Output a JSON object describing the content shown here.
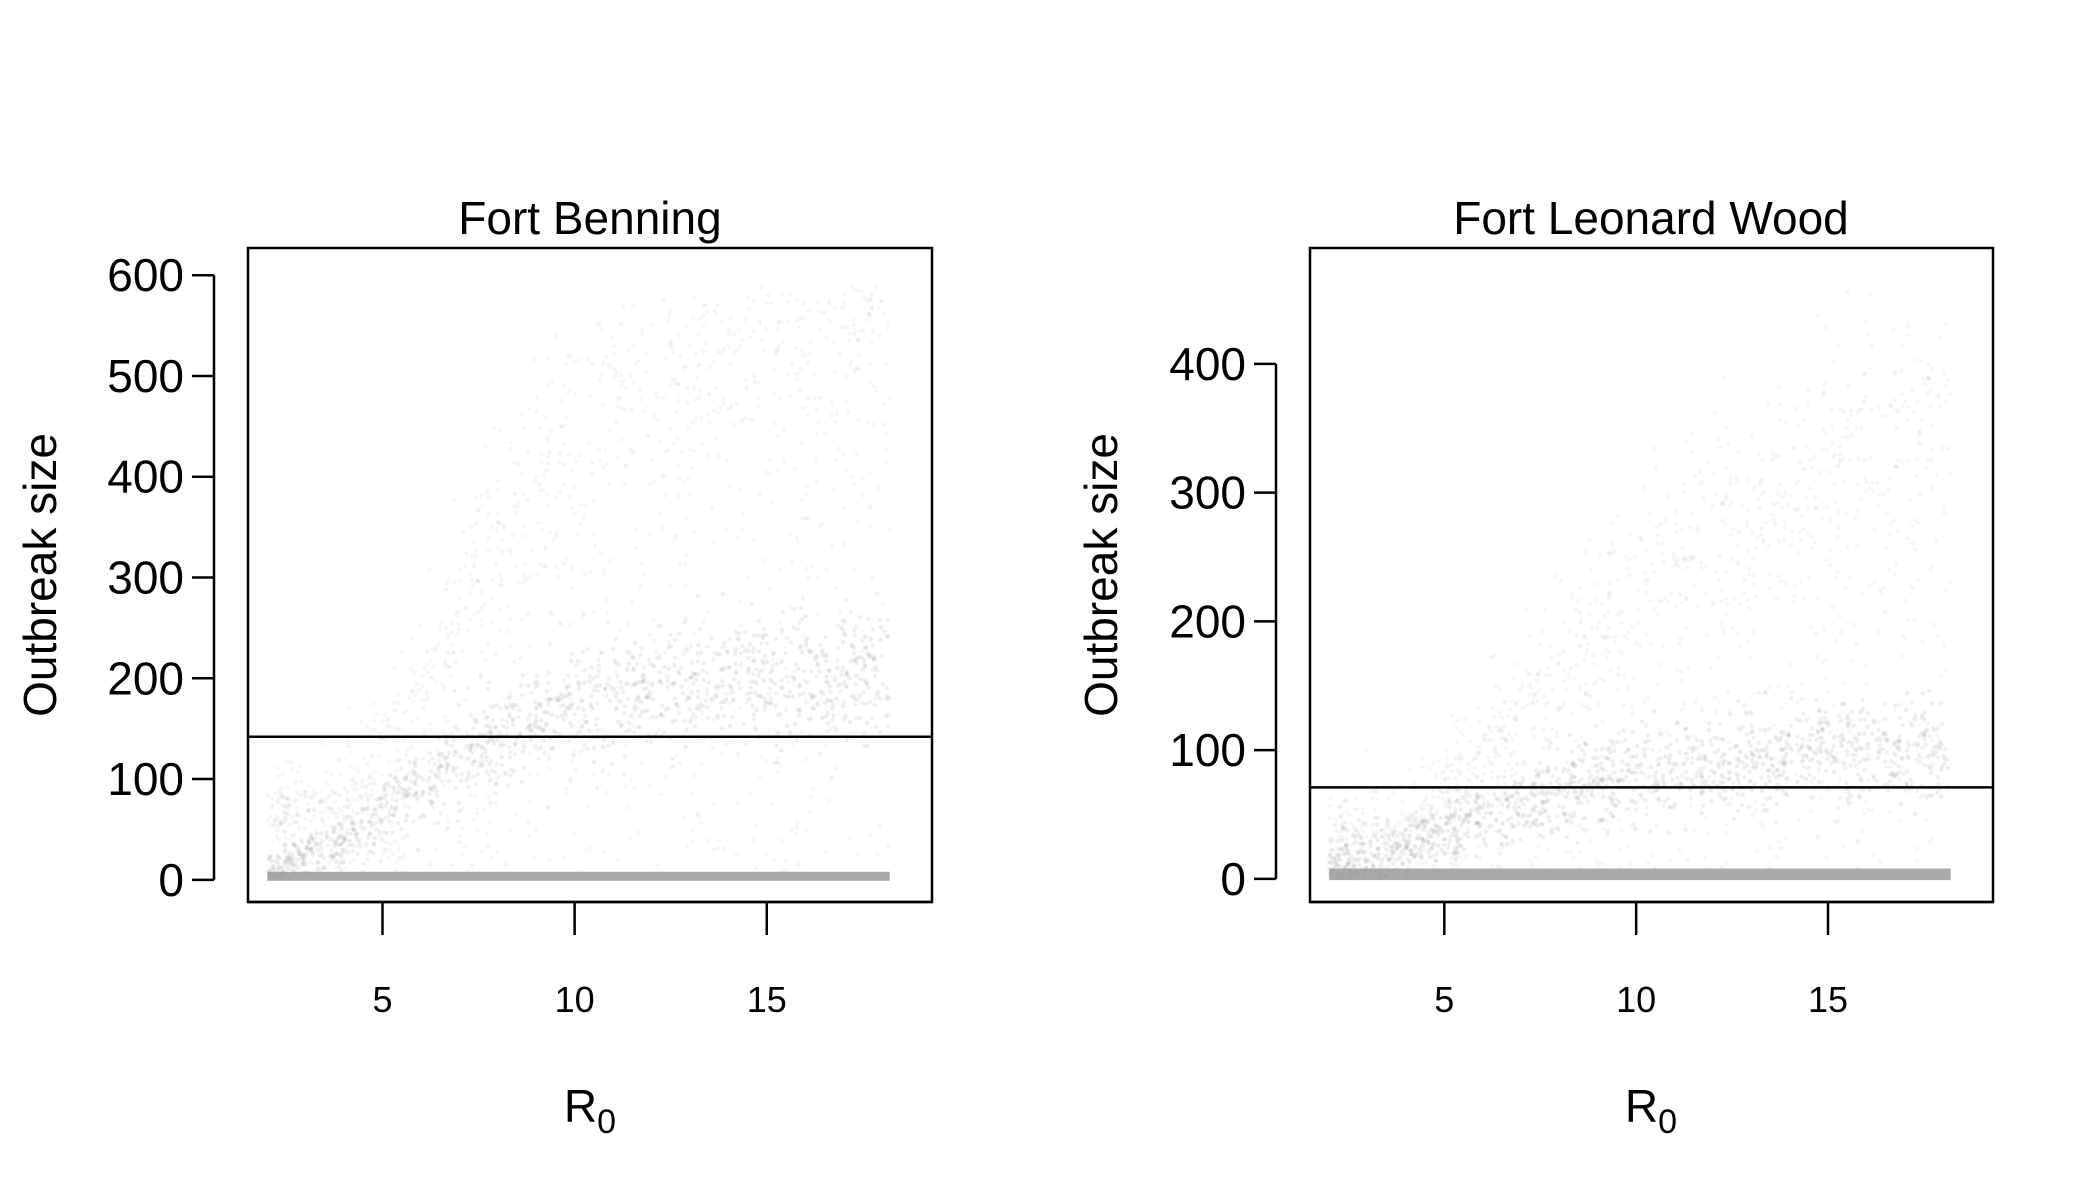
{
  "chart_data": [
    {
      "type": "scatter",
      "title": "Fort Benning",
      "xlabel": "R",
      "xlabel_sub": "0",
      "ylabel": "Outbreak size",
      "xlim": [
        1.5,
        19.3
      ],
      "ylim": [
        -22,
        627
      ],
      "xticks": [
        5,
        10,
        15
      ],
      "yticks": [
        0,
        100,
        200,
        300,
        400,
        500,
        600
      ],
      "x_range_points": [
        2,
        18.2
      ],
      "baseline_y": 3,
      "reference_line_y": 142,
      "grid": false,
      "legend": "none",
      "point_color": "#9a9a9a",
      "series": [
        {
          "band": "lower",
          "x": [
            2,
            4,
            6,
            8,
            10,
            12,
            14,
            16,
            18
          ],
          "y_center": [
            12,
            40,
            95,
            140,
            170,
            188,
            198,
            203,
            205
          ]
        },
        {
          "band": "upper",
          "x": [
            4,
            6,
            8,
            10,
            12,
            14,
            16,
            18
          ],
          "y_center": [
            80,
            200,
            350,
            460,
            520,
            545,
            555,
            560
          ]
        }
      ]
    },
    {
      "type": "scatter",
      "title": "Fort Leonard Wood",
      "xlabel": "R",
      "xlabel_sub": "0",
      "ylabel": "Outbreak size",
      "xlim": [
        1.5,
        19.3
      ],
      "ylim": [
        -18,
        490
      ],
      "xticks": [
        5,
        10,
        15
      ],
      "yticks": [
        0,
        100,
        200,
        300,
        400
      ],
      "x_range_points": [
        2,
        18.2
      ],
      "baseline_y": 3,
      "reference_line_y": 71,
      "grid": false,
      "legend": "none",
      "point_color": "#9a9a9a",
      "series": [
        {
          "band": "lower",
          "x": [
            2,
            4,
            6,
            8,
            10,
            12,
            14,
            16,
            18
          ],
          "y_center": [
            8,
            25,
            50,
            68,
            80,
            88,
            94,
            98,
            100
          ]
        },
        {
          "band": "upper",
          "x": [
            4,
            6,
            8,
            10,
            12,
            14,
            16,
            18
          ],
          "y_center": [
            40,
            100,
            170,
            230,
            280,
            320,
            350,
            370
          ]
        }
      ]
    }
  ]
}
